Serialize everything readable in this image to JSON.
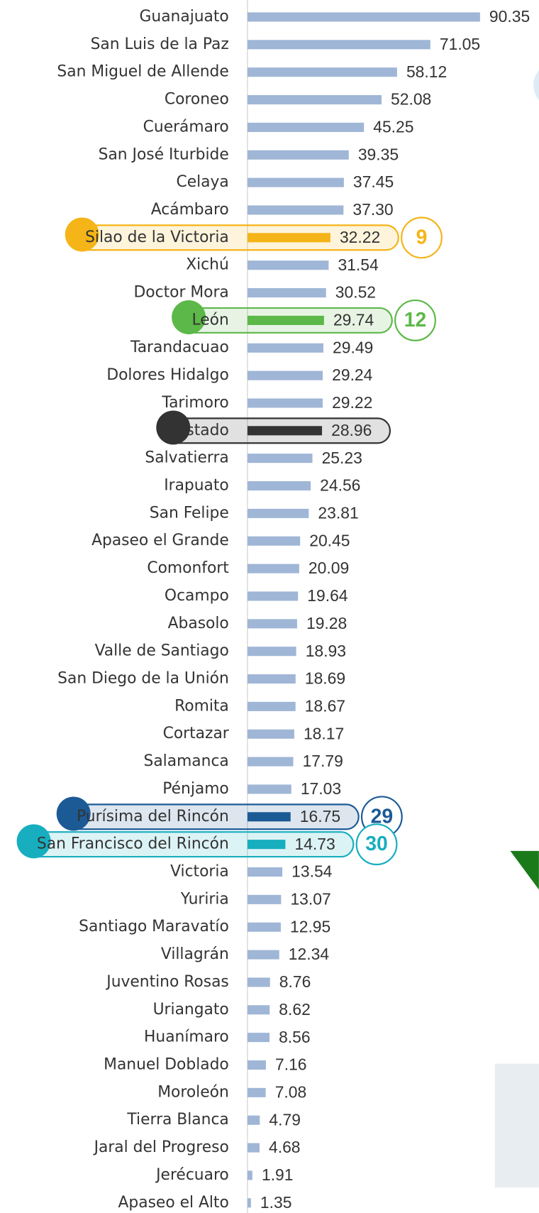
{
  "chart_data": {
    "type": "hbar",
    "categories": [
      "Guanajuato",
      "San Luis de la Paz",
      "San Miguel de Allende",
      "Coroneo",
      "Cuerámaro",
      "San José Iturbide",
      "Celaya",
      "Acámbaro",
      "Silao de la Victoria",
      "Xichú",
      "Doctor Mora",
      "León",
      "Tarandacuao",
      "Dolores Hidalgo",
      "Tarimoro",
      "Estado",
      "Salvatierra",
      "Irapuato",
      "San Felipe",
      "Apaseo el Grande",
      "Comonfort",
      "Ocampo",
      "Abasolo",
      "Valle de Santiago",
      "San Diego de la Unión",
      "Romita",
      "Cortazar",
      "Salamanca",
      "Pénjamo",
      "Purísima del Rincón",
      "San Francisco del Rincón",
      "Victoria",
      "Yuriria",
      "Santiago Maravatío",
      "Villagrán",
      "Juventino Rosas",
      "Uriangato",
      "Huanímaro",
      "Manuel Doblado",
      "Moroleón",
      "Tierra Blanca",
      "Jaral del Progreso",
      "Jerécuaro",
      "Apaseo el Alto"
    ],
    "values": [
      90.35,
      71.05,
      58.12,
      52.08,
      45.25,
      39.35,
      37.45,
      37.3,
      32.22,
      31.54,
      30.52,
      29.74,
      29.49,
      29.24,
      29.22,
      28.96,
      25.23,
      24.56,
      23.81,
      20.45,
      20.09,
      19.64,
      19.28,
      18.93,
      18.69,
      18.67,
      18.17,
      17.79,
      17.03,
      16.75,
      14.73,
      13.54,
      13.07,
      12.95,
      12.34,
      8.76,
      8.62,
      8.56,
      7.16,
      7.08,
      4.79,
      4.68,
      1.91,
      1.35
    ],
    "value_labels": [
      "90.35",
      "71.05",
      "58.12",
      "52.08",
      "45.25",
      "39.35",
      "37.45",
      "37.30",
      "32.22",
      "31.54",
      "30.52",
      "29.74",
      "29.49",
      "29.24",
      "29.22",
      "28.96",
      "25.23",
      "24.56",
      "23.81",
      "20.45",
      "20.09",
      "19.64",
      "19.28",
      "18.93",
      "18.69",
      "18.67",
      "18.17",
      "17.79",
      "17.03",
      "16.75",
      "14.73",
      "13.54",
      "13.07",
      "12.95",
      "12.34",
      "8.76",
      "8.62",
      "8.56",
      "7.16",
      "7.08",
      "4.79",
      "4.68",
      "1.91",
      "1.35"
    ],
    "color": "#9fb6d6",
    "bar_colors": [
      null,
      null,
      null,
      null,
      null,
      null,
      null,
      null,
      "#f5b417",
      null,
      null,
      "#5cb848",
      null,
      null,
      null,
      "#333333",
      null,
      null,
      null,
      null,
      null,
      null,
      null,
      null,
      null,
      null,
      null,
      null,
      null,
      "#1c5a96",
      "#17aebf",
      null,
      null,
      null,
      null,
      null,
      null,
      null,
      null,
      null,
      null,
      null,
      null,
      null
    ],
    "ranks": [
      null,
      null,
      null,
      null,
      null,
      null,
      null,
      null,
      9,
      null,
      null,
      12,
      null,
      null,
      null,
      null,
      null,
      null,
      null,
      null,
      null,
      null,
      null,
      null,
      null,
      null,
      null,
      null,
      null,
      29,
      30,
      null,
      null,
      null,
      null,
      null,
      null,
      null,
      null,
      null,
      null,
      null,
      null,
      null
    ],
    "xlim": [
      0,
      100
    ]
  }
}
